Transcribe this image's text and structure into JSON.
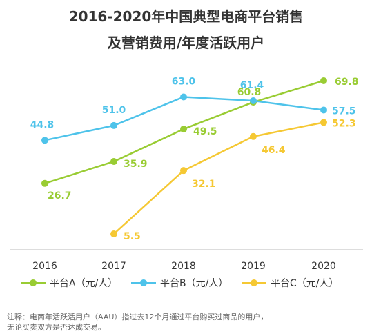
{
  "title_line1": "2016-2020年中国典型电商平台销售",
  "title_line2": "及营销费用/年度活跃用户",
  "note_line1": "注释：电商年活跃活用户（AAU）指过去12个月通过平台购买过商品的用户，",
  "note_line2": "无论买卖双方是否达成交易。",
  "colors": {
    "A": "#99cc33",
    "B": "#4ec3ea",
    "C": "#f5c833",
    "axis": "#bbbbbb",
    "text": "#333333"
  },
  "chart_data": {
    "type": "line",
    "title": "2016-2020年中国典型电商平台销售及营销费用/年度活跃用户",
    "x": [
      "2016",
      "2017",
      "2018",
      "2019",
      "2020"
    ],
    "ylim": [
      0,
      75
    ],
    "grid": false,
    "legend": "bottom",
    "series": [
      {
        "name": "平台A（元/人）",
        "color": "A",
        "values": [
          26.7,
          35.9,
          49.5,
          60.8,
          69.8
        ],
        "labels": [
          "26.7",
          "35.9",
          "49.5",
          "60.8",
          "69.8"
        ]
      },
      {
        "name": "平台B（元/人）",
        "color": "B",
        "values": [
          44.8,
          51.0,
          63.0,
          61.4,
          57.5
        ],
        "labels": [
          "44.8",
          "51.0",
          "63.0",
          "61.4",
          "57.5"
        ]
      },
      {
        "name": "平台C（元/人）",
        "color": "C",
        "values": [
          null,
          5.5,
          32.1,
          46.4,
          52.3
        ],
        "labels": [
          null,
          "5.5",
          "32.1",
          "46.4",
          "52.3"
        ]
      }
    ]
  }
}
